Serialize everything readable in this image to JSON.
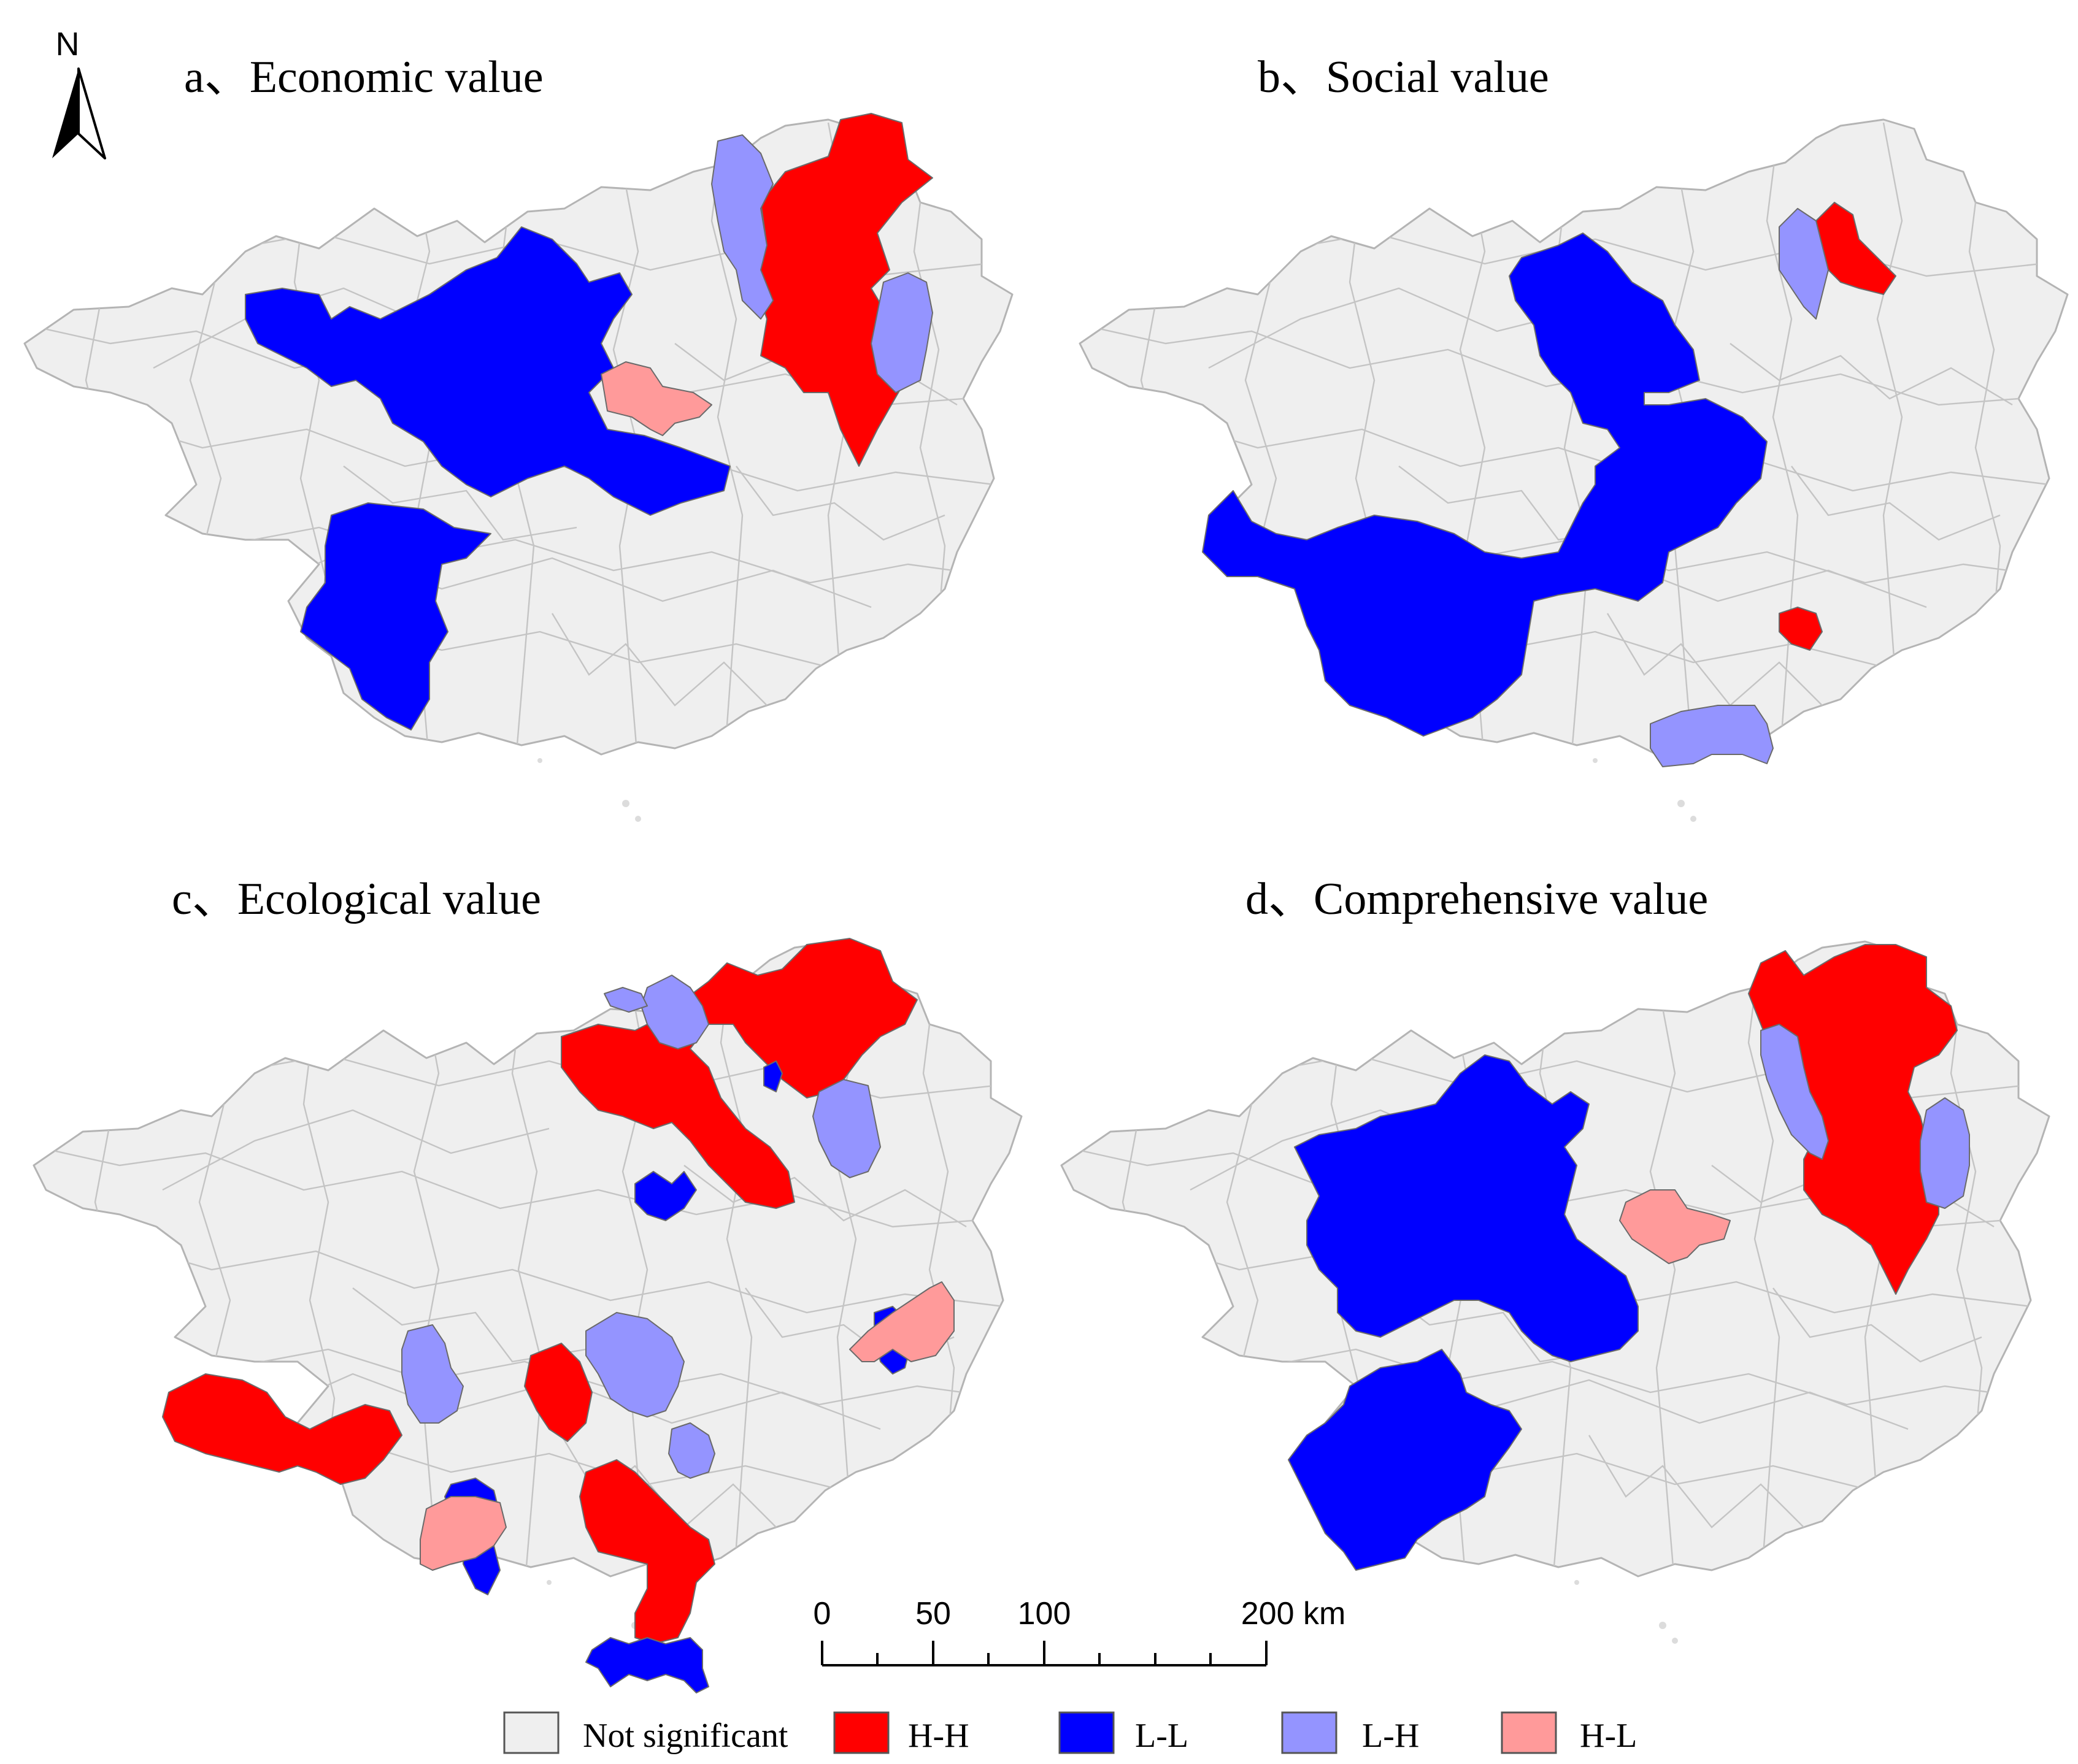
{
  "north_label": "N",
  "panels": [
    {
      "id": "a",
      "title": "a、Economic value"
    },
    {
      "id": "b",
      "title": "b、Social value"
    },
    {
      "id": "c",
      "title": "c、Ecological value"
    },
    {
      "id": "d",
      "title": "d、Comprehensive value"
    }
  ],
  "scale_bar": {
    "ticks": [
      "0",
      "50",
      "100",
      "200 km"
    ]
  },
  "legend": {
    "items": [
      {
        "label": "Not significant",
        "color": "#efefef"
      },
      {
        "label": "H-H",
        "color": "#ff0000"
      },
      {
        "label": "L-L",
        "color": "#0000ff"
      },
      {
        "label": "L-H",
        "color": "#9494ff"
      },
      {
        "label": "H-L",
        "color": "#ff9a9a"
      }
    ]
  },
  "colors": {
    "not_significant": "#efefef",
    "hh": "#ff0000",
    "ll": "#0000ff",
    "lh": "#9494ff",
    "hl": "#ff9a9a",
    "boundary": "#b4b4b4"
  }
}
